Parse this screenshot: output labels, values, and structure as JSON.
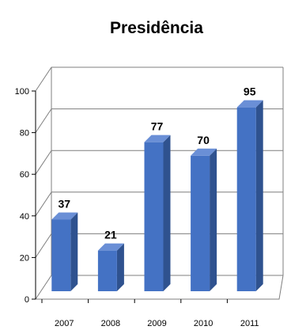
{
  "chart_data": {
    "type": "bar",
    "title": "Presidência",
    "categories": [
      "2007",
      "2008",
      "2009",
      "2010",
      "2011"
    ],
    "values": [
      37,
      21,
      77,
      70,
      95
    ],
    "ylim": [
      0,
      100
    ],
    "yticks": [
      0,
      20,
      40,
      60,
      80,
      100
    ],
    "grid": true,
    "bar_color": "#4472C4",
    "data_labels": true
  }
}
